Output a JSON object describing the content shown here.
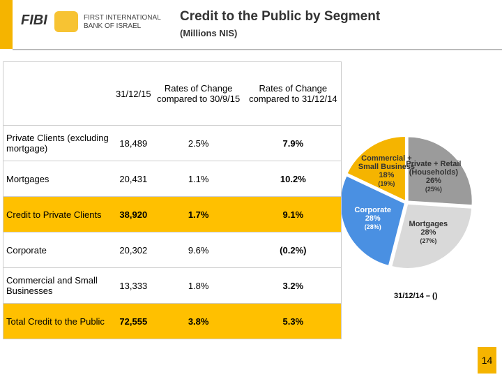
{
  "header": {
    "logo": "FIBI",
    "bank_line1": "FIRST INTERNATIONAL",
    "bank_line2": "BANK OF ISRAEL",
    "title": "Credit to the Public by Segment",
    "subtitle": "(Millions NIS)"
  },
  "table": {
    "columns": [
      "31/12/15",
      "Rates of Change compared to 30/9/15",
      "Rates of Change compared to 31/12/14"
    ],
    "rows": [
      [
        "Private Clients (excluding mortgage)",
        "18,489",
        "2.5%",
        "7.9%"
      ],
      [
        "Mortgages",
        "20,431",
        "1.1%",
        "10.2%"
      ],
      [
        "Credit to Private Clients",
        "38,920",
        "1.7%",
        "9.1%"
      ],
      [
        "Corporate",
        "20,302",
        "9.6%",
        "(0.2%)"
      ],
      [
        "Commercial and Small Businesses",
        "13,333",
        "1.8%",
        "3.2%"
      ],
      [
        "Total Credit to the Public",
        "72,555",
        "3.8%",
        "5.3%"
      ]
    ],
    "highlighted": [
      false,
      false,
      true,
      false,
      false,
      true
    ]
  },
  "chart_data": {
    "type": "pie",
    "categories": [
      "Private + Retail (Households)",
      "Mortgages",
      "Corporate",
      "Commercial + Small Business"
    ],
    "values": [
      26,
      28,
      28,
      18
    ],
    "value_labels": [
      "26%",
      "28%",
      "28%",
      "18%"
    ],
    "previous_labels": [
      "(25%)",
      "(27%)",
      "(28%)",
      "(19%)"
    ],
    "colors": [
      "#9b9b9b",
      "#d9d9d9",
      "#4a90e2",
      "#f5b400"
    ],
    "caption": "31/12/14 – ()"
  },
  "page_number": "14"
}
